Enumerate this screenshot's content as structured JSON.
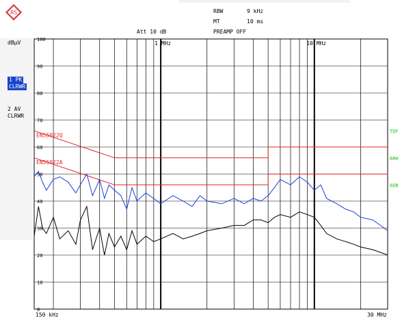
{
  "header": {
    "rbw_label": "RBW",
    "rbw_value": "9 kHz",
    "mt_label": "MT",
    "mt_value": "10 ms",
    "att_text": "Att 10 dB",
    "preamp_text": "PREAMP OFF"
  },
  "left_panel": {
    "unit": "dBµV",
    "trace1_line1": "1 PK",
    "trace1_line2": "CLRWR",
    "trace2_line1": "2 AV",
    "trace2_line2": "CLRWR"
  },
  "right_markers": [
    "TDF",
    "6RH",
    "6DB"
  ],
  "limit_labels": [
    "EN55022Q",
    "EN55022A"
  ],
  "colors": {
    "trace1": "#1a3ee0",
    "trace2": "#000000",
    "limits": "#e02020",
    "markers": "#1fbf1f",
    "grid": "#000000"
  },
  "chart_data": {
    "type": "line",
    "x_scale": "log",
    "xlim": [
      0.15,
      30
    ],
    "ylim": [
      0,
      100
    ],
    "ylabel": "dBµV",
    "x_tick_labels": [
      "150 kHz",
      "1 MHz",
      "10 MHz",
      "30 MHz"
    ],
    "y_tick_labels": [
      "0",
      "10",
      "20",
      "30",
      "40",
      "50",
      "60",
      "70",
      "80",
      "90",
      "100"
    ],
    "grid": true,
    "limit_lines": [
      {
        "name": "EN55022Q",
        "x": [
          0.15,
          0.5,
          5,
          5,
          30
        ],
        "y": [
          66,
          56,
          56,
          60,
          60
        ]
      },
      {
        "name": "EN55022A",
        "x": [
          0.15,
          0.5,
          5,
          5,
          30
        ],
        "y": [
          56,
          46,
          46,
          50,
          50
        ]
      }
    ],
    "series": [
      {
        "name": "1 PK",
        "x": [
          0.15,
          0.16,
          0.17,
          0.18,
          0.2,
          0.22,
          0.25,
          0.28,
          0.3,
          0.33,
          0.36,
          0.4,
          0.43,
          0.46,
          0.5,
          0.55,
          0.6,
          0.65,
          0.7,
          0.8,
          0.9,
          1.0,
          1.2,
          1.4,
          1.6,
          1.8,
          2.0,
          2.5,
          3.0,
          3.5,
          4.0,
          4.5,
          5.0,
          5.5,
          6.0,
          7.0,
          8.0,
          9.0,
          10.0,
          11.0,
          12.0,
          14.0,
          16.0,
          18.0,
          20.0,
          24.0,
          27.0,
          30.0
        ],
        "y": [
          49,
          51,
          47,
          44,
          48,
          49,
          47,
          43,
          46,
          50,
          42,
          48,
          41,
          46,
          44,
          42,
          37,
          45,
          40,
          43,
          41,
          39,
          42,
          40,
          38,
          42,
          40,
          39,
          41,
          39,
          41,
          40,
          42,
          45,
          48,
          46,
          49,
          47,
          44,
          46,
          41,
          39,
          37,
          36,
          34,
          33,
          31,
          29
        ]
      },
      {
        "name": "2 AV",
        "x": [
          0.15,
          0.16,
          0.17,
          0.18,
          0.2,
          0.22,
          0.25,
          0.28,
          0.3,
          0.33,
          0.36,
          0.4,
          0.43,
          0.46,
          0.5,
          0.55,
          0.6,
          0.65,
          0.7,
          0.8,
          0.9,
          1.0,
          1.2,
          1.4,
          1.6,
          1.8,
          2.0,
          2.5,
          3.0,
          3.5,
          4.0,
          4.5,
          5.0,
          5.5,
          6.0,
          7.0,
          8.0,
          9.0,
          10.0,
          11.0,
          12.0,
          14.0,
          16.0,
          18.0,
          20.0,
          24.0,
          27.0,
          30.0
        ],
        "y": [
          27,
          38,
          30,
          28,
          34,
          26,
          29,
          24,
          33,
          38,
          22,
          30,
          20,
          28,
          23,
          27,
          22,
          29,
          24,
          27,
          25,
          26,
          28,
          26,
          27,
          28,
          29,
          30,
          31,
          31,
          33,
          33,
          32,
          34,
          35,
          34,
          36,
          35,
          34,
          31,
          28,
          26,
          25,
          24,
          23,
          22,
          21,
          20
        ]
      }
    ]
  }
}
